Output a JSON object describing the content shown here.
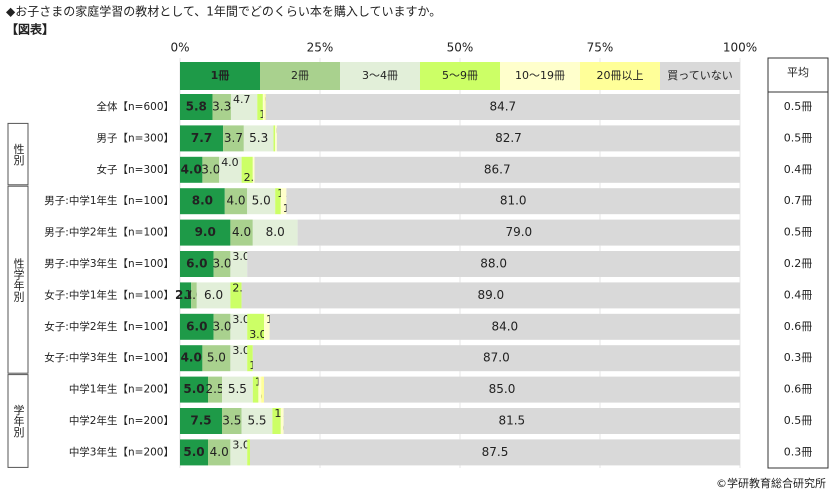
{
  "chart_data": {
    "type": "stacked-bar-horizontal",
    "title": "◆お子さまの家庭学習の教材として、1年間でどのくらい本を購入していますか。",
    "subtitle": "【図表】",
    "source": "©学研教育総合研究所",
    "categories": [
      "全体【n=600】",
      "男子【n=300】",
      "女子【n=300】",
      "男子:中学1年生【n=100】",
      "男子:中学2年生【n=100】",
      "男子:中学3年生【n=100】",
      "女子:中学1年生【n=100】",
      "女子:中学2年生【n=100】",
      "女子:中学3年生【n=100】",
      "中学1年生【n=200】",
      "中学2年生【n=200】",
      "中学3年生【n=200】"
    ],
    "groups": [
      "性別",
      "性学年別",
      "学年別"
    ],
    "xlim": [
      0,
      100
    ],
    "xticks": [
      {
        "value": 0,
        "label": "0%"
      },
      {
        "value": 25,
        "label": "25%"
      },
      {
        "value": 50,
        "label": "50%"
      },
      {
        "value": 75,
        "label": "75%"
      },
      {
        "value": 100,
        "label": "100%"
      }
    ],
    "grid": true,
    "series": [
      {
        "name": "1冊",
        "color": "#1e9a48",
        "values": [
          5.8,
          7.7,
          4.0,
          8.0,
          9.0,
          6.0,
          2.0,
          6.0,
          4.0,
          5.0,
          7.5,
          5.0
        ],
        "value_labels": [
          "5.8",
          "7.7",
          "4.0",
          "8.0",
          "9.0",
          "6.0",
          "2.0",
          "6.0",
          "4.0",
          "5.0",
          "7.5",
          "5.0"
        ]
      },
      {
        "name": "2冊",
        "color": "#a9d18e",
        "values": [
          3.3,
          3.7,
          3.0,
          4.0,
          4.0,
          3.0,
          1.0,
          3.0,
          5.0,
          2.5,
          3.5,
          4.0
        ],
        "value_labels": [
          "3.3",
          "3.7",
          "3.0",
          "4.0",
          "4.0",
          "3.0",
          "1.0",
          "3.0",
          "5.0",
          "2.5",
          "3.5",
          "4.0"
        ]
      },
      {
        "name": "3～4冊",
        "color": "#e2efd9",
        "values": [
          4.7,
          5.3,
          4.0,
          5.0,
          8.0,
          3.0,
          6.0,
          3.0,
          3.0,
          5.5,
          5.5,
          3.0
        ],
        "value_labels": [
          "4.7",
          "5.3",
          "4.0",
          "5.0",
          "8.0",
          "3.0",
          "6.0",
          "3.0",
          "3.0",
          "5.5",
          "5.5",
          "3.0"
        ]
      },
      {
        "name": "5～9冊",
        "color": "#ccff66",
        "values": [
          1.0,
          0.3,
          2.0,
          1.0,
          null,
          null,
          2.0,
          3.0,
          1.0,
          1.0,
          1.5,
          0.5
        ],
        "value_labels": [
          "1.0",
          "0.3",
          "2.0",
          "1.0",
          null,
          null,
          "2.0",
          "3.0",
          "1.0",
          "1.0",
          "1.5",
          "0.5"
        ]
      },
      {
        "name": "10～19冊",
        "color": "#ffffcc",
        "values": [
          0.3,
          0.3,
          0.3,
          1.0,
          null,
          null,
          null,
          1.0,
          null,
          0.5,
          0.5,
          null
        ],
        "value_labels": [
          "0.3",
          "0.3",
          "0.3",
          "1.0",
          null,
          null,
          null,
          "1.0",
          null,
          "0.5",
          "0.5",
          null
        ]
      },
      {
        "name": "20冊以上",
        "color": "#ffff99",
        "values": [
          0.2,
          null,
          null,
          null,
          null,
          null,
          null,
          null,
          null,
          0.5,
          null,
          null
        ],
        "value_labels": [
          "0.2",
          null,
          null,
          null,
          null,
          null,
          null,
          null,
          null,
          "0.5",
          null,
          null
        ]
      },
      {
        "name": "買っていない",
        "color": "#d9d9d9",
        "values": [
          84.7,
          82.7,
          86.7,
          81.0,
          79.0,
          88.0,
          89.0,
          84.0,
          87.0,
          85.0,
          81.5,
          87.5
        ],
        "value_labels": [
          "84.7",
          "82.7",
          "86.7",
          "81.0",
          "79.0",
          "88.0",
          "89.0",
          "84.0",
          "87.0",
          "85.0",
          "81.5",
          "87.5"
        ]
      }
    ],
    "averages_header": "平均",
    "averages": [
      "0.5冊",
      "0.5冊",
      "0.4冊",
      "0.7冊",
      "0.5冊",
      "0.2冊",
      "0.4冊",
      "0.6冊",
      "0.3冊",
      "0.6冊",
      "0.5冊",
      "0.3冊"
    ]
  }
}
